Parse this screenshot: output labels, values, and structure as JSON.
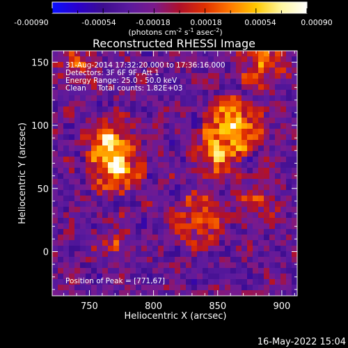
{
  "colorbar": {
    "ticks": [
      "-0.00090",
      "-0.00054",
      "-0.00018",
      "0.00018",
      "0.00054",
      "0.00090"
    ],
    "unit_prefix": "(photons cm",
    "unit_exp1": "-2",
    "unit_mid1": " s",
    "unit_exp2": "-1",
    "unit_mid2": " asec",
    "unit_exp3": "-2",
    "unit_suffix": ")",
    "colors": [
      "#0a10ff",
      "#2a00cc",
      "#3d0d8f",
      "#5a1a9e",
      "#7a1a8c",
      "#b0102a",
      "#e03000",
      "#ff7a00",
      "#ffc800",
      "#fff7a0",
      "#ffffff"
    ]
  },
  "annotations": {
    "line1": "31-Aug-2014 17:32:20.000 to 17:36:16.000",
    "line2": "Detectors: 3F 6F 9F, Att 1",
    "line3": "Energy Range: 25.0 - 50.0 keV",
    "line4": "Clean     Total counts: 1.82E+03",
    "peak": "Position of Peak = [771,67]"
  },
  "footer": {
    "timestamp": "16-May-2022 15:04"
  },
  "chart_data": {
    "type": "heatmap",
    "title": "Reconstructed RHESSI Image",
    "xlabel": "Heliocentric X (arcsec)",
    "ylabel": "Heliocentric Y (arcsec)",
    "xlim": [
      721,
      912
    ],
    "ylim": [
      -35,
      159
    ],
    "xticks": [
      750,
      800,
      850,
      900
    ],
    "yticks": [
      0,
      50,
      100,
      150
    ],
    "vmin": -0.0009,
    "vmax": 0.0009,
    "peak_position": [
      771,
      67
    ],
    "sources": [
      {
        "x": 771,
        "y": 67,
        "amp": 1.0,
        "sigma": 11
      },
      {
        "x": 765,
        "y": 90,
        "amp": 0.7,
        "sigma": 9
      },
      {
        "x": 862,
        "y": 100,
        "amp": 0.85,
        "sigma": 13
      },
      {
        "x": 850,
        "y": 75,
        "amp": 0.6,
        "sigma": 10
      },
      {
        "x": 835,
        "y": 25,
        "amp": 0.55,
        "sigma": 12
      },
      {
        "x": 885,
        "y": 150,
        "amp": 0.55,
        "sigma": 12
      },
      {
        "x": 740,
        "y": 150,
        "amp": 0.45,
        "sigma": 9
      },
      {
        "x": 880,
        "y": 40,
        "amp": 0.4,
        "sigma": 10
      },
      {
        "x": 770,
        "y": 5,
        "amp": 0.35,
        "sigma": 8
      }
    ]
  }
}
